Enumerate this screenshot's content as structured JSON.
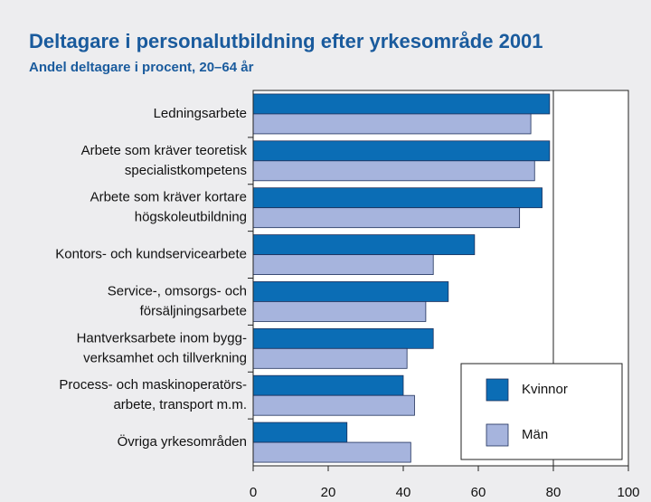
{
  "chart_data": {
    "type": "hbar",
    "title": "Deltagare i personalutbildning efter yrkesområde 2001",
    "subtitle": "Andel deltagare i procent, 20–64 år",
    "categories": [
      [
        "Ledningsarbete"
      ],
      [
        "Arbete som kräver teoretisk",
        "specialistkompetens"
      ],
      [
        "Arbete som kräver kortare",
        "högskoleutbildning"
      ],
      [
        "Kontors- och kundservicearbete"
      ],
      [
        "Service-, omsorgs- och",
        "försäljningsarbete"
      ],
      [
        "Hantverksarbete inom bygg-",
        "verksamhet och tillverkning"
      ],
      [
        "Process- och maskinoperatörs-",
        "arbete, transport m.m."
      ],
      [
        "Övriga yrkesområden"
      ]
    ],
    "series": [
      {
        "name": "Kvinnor",
        "color": "#0b6db5",
        "values": [
          79,
          79,
          77,
          59,
          52,
          48,
          40,
          25
        ]
      },
      {
        "name": "Män",
        "color": "#a6b4dd",
        "values": [
          74,
          75,
          71,
          48,
          46,
          41,
          43,
          42
        ]
      }
    ],
    "xlim": [
      0,
      100
    ],
    "xticks": [
      0,
      20,
      40,
      60,
      80,
      100
    ],
    "xgrid": [
      80
    ],
    "legend": "lower right"
  }
}
